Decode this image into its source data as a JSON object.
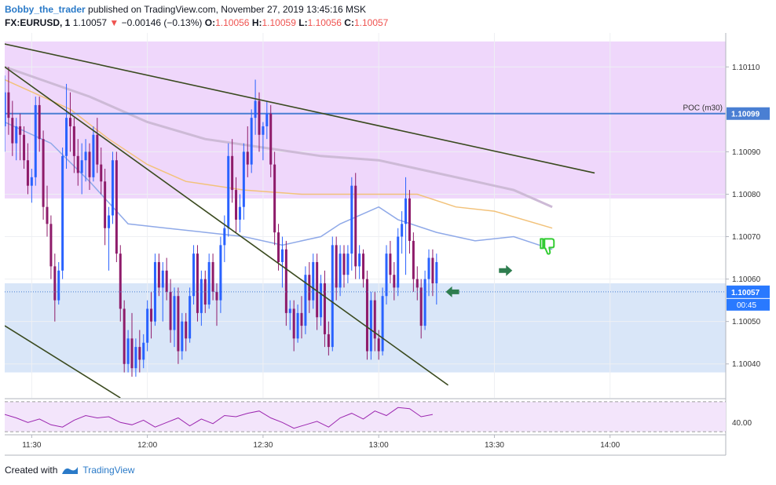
{
  "header": {
    "author": "Bobby_the_trader",
    "published_text": "published on TradingView.com, November 27, 2019 13:45:16 MSK",
    "symbol": "FX:EURUSD, 1",
    "price": "1.10057",
    "change": "−0.00146 (−0.13%)",
    "ohlc": {
      "o_label": "O:",
      "o": "1.10056",
      "h_label": "H:",
      "h": "1.10059",
      "l_label": "L:",
      "l": "1.10056",
      "c_label": "C:",
      "c": "1.10057"
    }
  },
  "footer": {
    "created_with": "Created with",
    "brand": "TradingView"
  },
  "colors": {
    "up": "#2962ff",
    "down": "#8e1b6a",
    "purple_zone": "#efd7fb",
    "blue_zone": "#d9e6f8",
    "poc": "#4a7fd3",
    "trend": "#3a4a1f",
    "ema_fast": "#8fa9e8",
    "ema_mid": "#f2c27a",
    "ema_slow": "#cdbad6",
    "rsi": "#9c27b0",
    "arrow": "#2e7d4f",
    "thumb": "#33cc33"
  },
  "chart_data": {
    "type": "candlestick",
    "symbol": "FX:EURUSD",
    "timeframe": "1",
    "ylim": [
      1.10032,
      1.10118
    ],
    "y_ticks": [
      "1.10110",
      "1.10090",
      "1.10080",
      "1.10070",
      "1.10060",
      "1.10050",
      "1.10040"
    ],
    "x_ticks": [
      "11:30",
      "12:00",
      "12:30",
      "13:00",
      "13:30",
      "14:00"
    ],
    "x_tick_minutes": [
      0,
      30,
      60,
      90,
      120,
      150
    ],
    "x_start_minute": -7,
    "x_end_minute": 180,
    "poc": {
      "label": "POC (m30)",
      "value": 1.10099,
      "value_label": "1.10099"
    },
    "last_price": {
      "value": 1.10057,
      "label": "1.10057",
      "countdown": "00:45"
    },
    "zones": [
      {
        "name": "resistance",
        "from": 1.10079,
        "to": 1.10116
      },
      {
        "name": "support",
        "from": 1.10038,
        "to": 1.10059
      }
    ],
    "trendlines": [
      {
        "name": "upper-channel",
        "p1": [
          -10,
          1.10116
        ],
        "p2": [
          146,
          1.10085
        ]
      },
      {
        "name": "falling-diagonal",
        "p1": [
          -7,
          1.1011
        ],
        "p2": [
          108,
          1.10035
        ]
      },
      {
        "name": "lower-channel",
        "p1": [
          -7,
          1.10049
        ],
        "p2": [
          23,
          1.10032
        ]
      }
    ],
    "ema_fast": [
      [
        -7,
        1.10097
      ],
      [
        5,
        1.10092
      ],
      [
        15,
        1.10083
      ],
      [
        25,
        1.10073
      ],
      [
        35,
        1.10072
      ],
      [
        45,
        1.10071
      ],
      [
        55,
        1.1007
      ],
      [
        65,
        1.10068
      ],
      [
        75,
        1.1007
      ],
      [
        80,
        1.10073
      ],
      [
        90,
        1.10077
      ],
      [
        95,
        1.10074
      ],
      [
        105,
        1.10071
      ],
      [
        115,
        1.10069
      ],
      [
        125,
        1.1007
      ],
      [
        135,
        1.10067
      ]
    ],
    "ema_mid": [
      [
        -7,
        1.10107
      ],
      [
        10,
        1.101
      ],
      [
        20,
        1.10093
      ],
      [
        30,
        1.10087
      ],
      [
        40,
        1.10083
      ],
      [
        55,
        1.10081
      ],
      [
        70,
        1.1008
      ],
      [
        80,
        1.1008
      ],
      [
        90,
        1.1008
      ],
      [
        100,
        1.1008
      ],
      [
        110,
        1.10077
      ],
      [
        120,
        1.10076
      ],
      [
        135,
        1.10072
      ]
    ],
    "ema_slow": [
      [
        -7,
        1.1011
      ],
      [
        15,
        1.10103
      ],
      [
        30,
        1.10097
      ],
      [
        45,
        1.10093
      ],
      [
        60,
        1.10091
      ],
      [
        75,
        1.10089
      ],
      [
        90,
        1.10088
      ],
      [
        100,
        1.10086
      ],
      [
        115,
        1.10083
      ],
      [
        125,
        1.10081
      ],
      [
        135,
        1.10077
      ]
    ],
    "candles": [
      {
        "t": -7,
        "o": 1.10096,
        "h": 1.10108,
        "l": 1.1009,
        "c": 1.10104
      },
      {
        "t": -6,
        "o": 1.10104,
        "h": 1.1011,
        "l": 1.10094,
        "c": 1.10098
      },
      {
        "t": -5,
        "o": 1.10098,
        "h": 1.10102,
        "l": 1.10089,
        "c": 1.10092
      },
      {
        "t": -4,
        "o": 1.10092,
        "h": 1.10098,
        "l": 1.10088,
        "c": 1.10096
      },
      {
        "t": -3,
        "o": 1.10096,
        "h": 1.10099,
        "l": 1.10088,
        "c": 1.10094
      },
      {
        "t": -2,
        "o": 1.10094,
        "h": 1.10096,
        "l": 1.10086,
        "c": 1.10088
      },
      {
        "t": -1,
        "o": 1.10088,
        "h": 1.10092,
        "l": 1.1008,
        "c": 1.10082
      },
      {
        "t": 0,
        "o": 1.10082,
        "h": 1.10086,
        "l": 1.10078,
        "c": 1.10084
      },
      {
        "t": 1,
        "o": 1.10084,
        "h": 1.10103,
        "l": 1.10082,
        "c": 1.10101
      },
      {
        "t": 2,
        "o": 1.10101,
        "h": 1.10103,
        "l": 1.1009,
        "c": 1.10093
      },
      {
        "t": 3,
        "o": 1.10093,
        "h": 1.10095,
        "l": 1.10074,
        "c": 1.10077
      },
      {
        "t": 4,
        "o": 1.10077,
        "h": 1.10082,
        "l": 1.1007,
        "c": 1.10073
      },
      {
        "t": 5,
        "o": 1.10073,
        "h": 1.10075,
        "l": 1.1006,
        "c": 1.10063
      },
      {
        "t": 6,
        "o": 1.10063,
        "h": 1.10066,
        "l": 1.1005,
        "c": 1.10055
      },
      {
        "t": 7,
        "o": 1.10055,
        "h": 1.10064,
        "l": 1.10054,
        "c": 1.10062
      },
      {
        "t": 8,
        "o": 1.10062,
        "h": 1.10091,
        "l": 1.1006,
        "c": 1.10089
      },
      {
        "t": 9,
        "o": 1.10089,
        "h": 1.10106,
        "l": 1.10086,
        "c": 1.10098
      },
      {
        "t": 10,
        "o": 1.10098,
        "h": 1.10104,
        "l": 1.1009,
        "c": 1.10096
      },
      {
        "t": 11,
        "o": 1.10096,
        "h": 1.10098,
        "l": 1.10085,
        "c": 1.10089
      },
      {
        "t": 12,
        "o": 1.10089,
        "h": 1.10093,
        "l": 1.10082,
        "c": 1.10085
      },
      {
        "t": 13,
        "o": 1.10085,
        "h": 1.10092,
        "l": 1.1008,
        "c": 1.10088
      },
      {
        "t": 14,
        "o": 1.10088,
        "h": 1.10093,
        "l": 1.10083,
        "c": 1.1009
      },
      {
        "t": 15,
        "o": 1.1009,
        "h": 1.10092,
        "l": 1.10081,
        "c": 1.10084
      },
      {
        "t": 16,
        "o": 1.10084,
        "h": 1.10096,
        "l": 1.10083,
        "c": 1.10094
      },
      {
        "t": 17,
        "o": 1.10094,
        "h": 1.10098,
        "l": 1.10085,
        "c": 1.10087
      },
      {
        "t": 18,
        "o": 1.10087,
        "h": 1.10091,
        "l": 1.1008,
        "c": 1.10083
      },
      {
        "t": 19,
        "o": 1.10083,
        "h": 1.10086,
        "l": 1.10068,
        "c": 1.10072
      },
      {
        "t": 20,
        "o": 1.10072,
        "h": 1.10077,
        "l": 1.10062,
        "c": 1.10075
      },
      {
        "t": 21,
        "o": 1.10075,
        "h": 1.1009,
        "l": 1.10073,
        "c": 1.10088
      },
      {
        "t": 22,
        "o": 1.10088,
        "h": 1.1009,
        "l": 1.10064,
        "c": 1.10066
      },
      {
        "t": 23,
        "o": 1.10066,
        "h": 1.10068,
        "l": 1.1005,
        "c": 1.10053
      },
      {
        "t": 24,
        "o": 1.10053,
        "h": 1.10055,
        "l": 1.10038,
        "c": 1.1004
      },
      {
        "t": 25,
        "o": 1.1004,
        "h": 1.10048,
        "l": 1.10038,
        "c": 1.10046
      },
      {
        "t": 26,
        "o": 1.10046,
        "h": 1.10052,
        "l": 1.10037,
        "c": 1.10039
      },
      {
        "t": 27,
        "o": 1.10039,
        "h": 1.10046,
        "l": 1.10037,
        "c": 1.10044
      },
      {
        "t": 28,
        "o": 1.10044,
        "h": 1.10048,
        "l": 1.10038,
        "c": 1.10041
      },
      {
        "t": 29,
        "o": 1.10041,
        "h": 1.10047,
        "l": 1.10039,
        "c": 1.10045
      },
      {
        "t": 30,
        "o": 1.10045,
        "h": 1.10055,
        "l": 1.10043,
        "c": 1.10053
      },
      {
        "t": 31,
        "o": 1.10053,
        "h": 1.10057,
        "l": 1.10046,
        "c": 1.1005
      },
      {
        "t": 32,
        "o": 1.1005,
        "h": 1.10066,
        "l": 1.10049,
        "c": 1.10064
      },
      {
        "t": 33,
        "o": 1.10064,
        "h": 1.10066,
        "l": 1.10056,
        "c": 1.10058
      },
      {
        "t": 34,
        "o": 1.10058,
        "h": 1.10064,
        "l": 1.1005,
        "c": 1.10062
      },
      {
        "t": 35,
        "o": 1.10062,
        "h": 1.10065,
        "l": 1.10055,
        "c": 1.10057
      },
      {
        "t": 36,
        "o": 1.10057,
        "h": 1.1006,
        "l": 1.10045,
        "c": 1.10048
      },
      {
        "t": 37,
        "o": 1.10048,
        "h": 1.10058,
        "l": 1.10044,
        "c": 1.10056
      },
      {
        "t": 38,
        "o": 1.10056,
        "h": 1.10058,
        "l": 1.1004,
        "c": 1.10043
      },
      {
        "t": 39,
        "o": 1.10043,
        "h": 1.10052,
        "l": 1.10041,
        "c": 1.1005
      },
      {
        "t": 40,
        "o": 1.1005,
        "h": 1.10052,
        "l": 1.10043,
        "c": 1.10046
      },
      {
        "t": 41,
        "o": 1.10046,
        "h": 1.10058,
        "l": 1.10045,
        "c": 1.10056
      },
      {
        "t": 42,
        "o": 1.10056,
        "h": 1.10068,
        "l": 1.10054,
        "c": 1.10066
      },
      {
        "t": 43,
        "o": 1.10066,
        "h": 1.10068,
        "l": 1.1005,
        "c": 1.10052
      },
      {
        "t": 44,
        "o": 1.10052,
        "h": 1.10062,
        "l": 1.10049,
        "c": 1.1006
      },
      {
        "t": 45,
        "o": 1.1006,
        "h": 1.10062,
        "l": 1.10052,
        "c": 1.10054
      },
      {
        "t": 46,
        "o": 1.10054,
        "h": 1.10066,
        "l": 1.10053,
        "c": 1.10064
      },
      {
        "t": 47,
        "o": 1.10064,
        "h": 1.10066,
        "l": 1.10055,
        "c": 1.10057
      },
      {
        "t": 48,
        "o": 1.10057,
        "h": 1.10059,
        "l": 1.10049,
        "c": 1.10055
      },
      {
        "t": 49,
        "o": 1.10055,
        "h": 1.1007,
        "l": 1.10052,
        "c": 1.10068
      },
      {
        "t": 50,
        "o": 1.10068,
        "h": 1.10075,
        "l": 1.10064,
        "c": 1.10072
      },
      {
        "t": 51,
        "o": 1.10072,
        "h": 1.10092,
        "l": 1.1007,
        "c": 1.10089
      },
      {
        "t": 52,
        "o": 1.10089,
        "h": 1.10093,
        "l": 1.10078,
        "c": 1.10081
      },
      {
        "t": 53,
        "o": 1.10081,
        "h": 1.10084,
        "l": 1.10071,
        "c": 1.10074
      },
      {
        "t": 54,
        "o": 1.10074,
        "h": 1.1008,
        "l": 1.10071,
        "c": 1.10077
      },
      {
        "t": 55,
        "o": 1.10077,
        "h": 1.10092,
        "l": 1.10074,
        "c": 1.1009
      },
      {
        "t": 56,
        "o": 1.1009,
        "h": 1.10096,
        "l": 1.10084,
        "c": 1.10087
      },
      {
        "t": 57,
        "o": 1.10087,
        "h": 1.101,
        "l": 1.10085,
        "c": 1.10098
      },
      {
        "t": 58,
        "o": 1.10098,
        "h": 1.10107,
        "l": 1.10094,
        "c": 1.10102
      },
      {
        "t": 59,
        "o": 1.10102,
        "h": 1.10104,
        "l": 1.1009,
        "c": 1.10094
      },
      {
        "t": 60,
        "o": 1.10094,
        "h": 1.10097,
        "l": 1.10088,
        "c": 1.10096
      },
      {
        "t": 61,
        "o": 1.10096,
        "h": 1.10102,
        "l": 1.10093,
        "c": 1.10099
      },
      {
        "t": 62,
        "o": 1.10099,
        "h": 1.10101,
        "l": 1.10084,
        "c": 1.10087
      },
      {
        "t": 63,
        "o": 1.10087,
        "h": 1.1009,
        "l": 1.10068,
        "c": 1.10071
      },
      {
        "t": 64,
        "o": 1.10071,
        "h": 1.10073,
        "l": 1.10062,
        "c": 1.10064
      },
      {
        "t": 65,
        "o": 1.10064,
        "h": 1.1007,
        "l": 1.10058,
        "c": 1.10067
      },
      {
        "t": 66,
        "o": 1.10067,
        "h": 1.10069,
        "l": 1.10049,
        "c": 1.10052
      },
      {
        "t": 67,
        "o": 1.10052,
        "h": 1.10055,
        "l": 1.10048,
        "c": 1.10053
      },
      {
        "t": 68,
        "o": 1.10053,
        "h": 1.10055,
        "l": 1.10043,
        "c": 1.10046
      },
      {
        "t": 69,
        "o": 1.10046,
        "h": 1.10054,
        "l": 1.10045,
        "c": 1.10052
      },
      {
        "t": 70,
        "o": 1.10052,
        "h": 1.10056,
        "l": 1.10046,
        "c": 1.10049
      },
      {
        "t": 71,
        "o": 1.10049,
        "h": 1.10063,
        "l": 1.10047,
        "c": 1.10061
      },
      {
        "t": 72,
        "o": 1.10061,
        "h": 1.10064,
        "l": 1.10052,
        "c": 1.10055
      },
      {
        "t": 73,
        "o": 1.10055,
        "h": 1.10066,
        "l": 1.10053,
        "c": 1.10064
      },
      {
        "t": 74,
        "o": 1.10064,
        "h": 1.10066,
        "l": 1.10048,
        "c": 1.10051
      },
      {
        "t": 75,
        "o": 1.10051,
        "h": 1.10061,
        "l": 1.10049,
        "c": 1.10059
      },
      {
        "t": 76,
        "o": 1.10059,
        "h": 1.10062,
        "l": 1.10044,
        "c": 1.10047
      },
      {
        "t": 77,
        "o": 1.10047,
        "h": 1.1005,
        "l": 1.10042,
        "c": 1.10044
      },
      {
        "t": 78,
        "o": 1.10044,
        "h": 1.1007,
        "l": 1.10043,
        "c": 1.10068
      },
      {
        "t": 79,
        "o": 1.10068,
        "h": 1.1007,
        "l": 1.10055,
        "c": 1.10058
      },
      {
        "t": 80,
        "o": 1.10058,
        "h": 1.10068,
        "l": 1.10056,
        "c": 1.10066
      },
      {
        "t": 81,
        "o": 1.10066,
        "h": 1.10068,
        "l": 1.10058,
        "c": 1.10061
      },
      {
        "t": 82,
        "o": 1.10061,
        "h": 1.10068,
        "l": 1.10059,
        "c": 1.10066
      },
      {
        "t": 83,
        "o": 1.10066,
        "h": 1.10084,
        "l": 1.10062,
        "c": 1.10082
      },
      {
        "t": 84,
        "o": 1.10082,
        "h": 1.10085,
        "l": 1.1006,
        "c": 1.10063
      },
      {
        "t": 85,
        "o": 1.10063,
        "h": 1.10068,
        "l": 1.1006,
        "c": 1.10066
      },
      {
        "t": 86,
        "o": 1.10066,
        "h": 1.10067,
        "l": 1.10058,
        "c": 1.1006
      },
      {
        "t": 87,
        "o": 1.1006,
        "h": 1.10062,
        "l": 1.10041,
        "c": 1.10043
      },
      {
        "t": 88,
        "o": 1.10043,
        "h": 1.10057,
        "l": 1.10041,
        "c": 1.10055
      },
      {
        "t": 89,
        "o": 1.10055,
        "h": 1.10057,
        "l": 1.10043,
        "c": 1.10046
      },
      {
        "t": 90,
        "o": 1.10046,
        "h": 1.10048,
        "l": 1.10041,
        "c": 1.10043
      },
      {
        "t": 91,
        "o": 1.10043,
        "h": 1.10058,
        "l": 1.10042,
        "c": 1.10056
      },
      {
        "t": 92,
        "o": 1.10056,
        "h": 1.10068,
        "l": 1.10054,
        "c": 1.10066
      },
      {
        "t": 93,
        "o": 1.10066,
        "h": 1.10069,
        "l": 1.10059,
        "c": 1.10061
      },
      {
        "t": 94,
        "o": 1.10061,
        "h": 1.10064,
        "l": 1.10055,
        "c": 1.10058
      },
      {
        "t": 95,
        "o": 1.10058,
        "h": 1.10072,
        "l": 1.10056,
        "c": 1.1007
      },
      {
        "t": 96,
        "o": 1.1007,
        "h": 1.10076,
        "l": 1.10066,
        "c": 1.10073
      },
      {
        "t": 97,
        "o": 1.10073,
        "h": 1.10084,
        "l": 1.10061,
        "c": 1.10079
      },
      {
        "t": 98,
        "o": 1.10079,
        "h": 1.10081,
        "l": 1.10066,
        "c": 1.10069
      },
      {
        "t": 99,
        "o": 1.10069,
        "h": 1.10071,
        "l": 1.10057,
        "c": 1.1006
      },
      {
        "t": 100,
        "o": 1.1006,
        "h": 1.10063,
        "l": 1.10055,
        "c": 1.10058
      },
      {
        "t": 101,
        "o": 1.10058,
        "h": 1.1006,
        "l": 1.10046,
        "c": 1.10049
      },
      {
        "t": 102,
        "o": 1.10049,
        "h": 1.10062,
        "l": 1.10048,
        "c": 1.1006
      },
      {
        "t": 103,
        "o": 1.1006,
        "h": 1.10067,
        "l": 1.10056,
        "c": 1.10065
      },
      {
        "t": 104,
        "o": 1.10065,
        "h": 1.10067,
        "l": 1.10056,
        "c": 1.10059
      },
      {
        "t": 105,
        "o": 1.10059,
        "h": 1.10066,
        "l": 1.10054,
        "c": 1.10064
      }
    ],
    "rsi": {
      "y_tick": "40.00",
      "values": [
        [
          -7,
          47
        ],
        [
          -4,
          44
        ],
        [
          -1,
          40
        ],
        [
          2,
          43
        ],
        [
          5,
          38
        ],
        [
          8,
          36
        ],
        [
          11,
          42
        ],
        [
          14,
          46
        ],
        [
          17,
          44
        ],
        [
          20,
          45
        ],
        [
          23,
          40
        ],
        [
          26,
          38
        ],
        [
          29,
          42
        ],
        [
          32,
          36
        ],
        [
          35,
          40
        ],
        [
          38,
          44
        ],
        [
          41,
          37
        ],
        [
          44,
          43
        ],
        [
          47,
          39
        ],
        [
          50,
          46
        ],
        [
          53,
          45
        ],
        [
          56,
          48
        ],
        [
          59,
          50
        ],
        [
          62,
          44
        ],
        [
          65,
          40
        ],
        [
          68,
          35
        ],
        [
          71,
          38
        ],
        [
          74,
          41
        ],
        [
          77,
          36
        ],
        [
          80,
          44
        ],
        [
          83,
          48
        ],
        [
          86,
          43
        ],
        [
          89,
          50
        ],
        [
          92,
          46
        ],
        [
          95,
          53
        ],
        [
          98,
          52
        ],
        [
          101,
          45
        ],
        [
          104,
          47
        ]
      ]
    }
  }
}
